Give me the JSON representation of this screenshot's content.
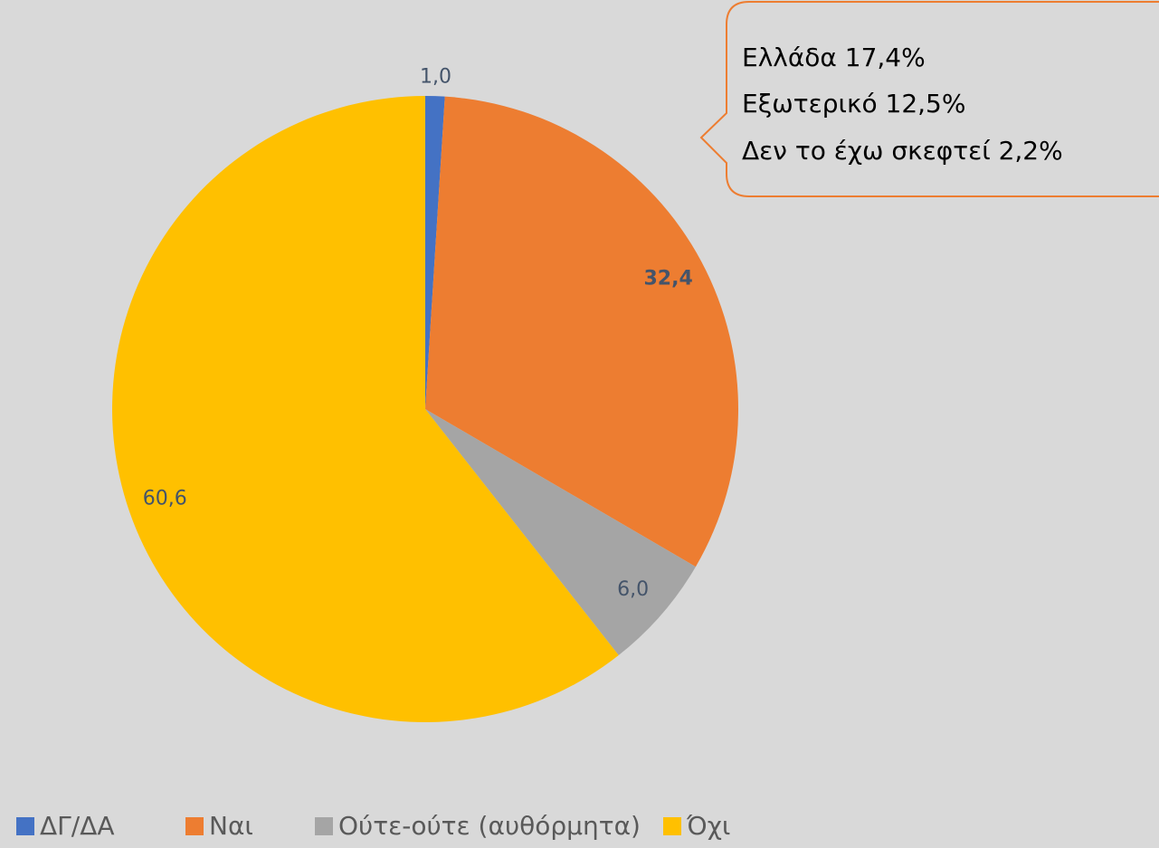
{
  "chart_data": {
    "type": "pie",
    "categories": [
      "ΔΓ/ΔΑ",
      "Ναι",
      "Ούτε-ούτε (αυθόρμητα)",
      "Όχι"
    ],
    "values": [
      1.0,
      32.4,
      6.0,
      60.6
    ],
    "value_labels": [
      "1,0",
      "32,4",
      "6,0",
      "60,6"
    ],
    "colors": [
      "#4472c4",
      "#ed7d31",
      "#a5a5a5",
      "#ffc000"
    ],
    "legend": "bottom",
    "annotations": [
      "Ελλάδα 17,4%",
      "Εξωτερικό 12,5%",
      "Δεν το έχω σκεφτεί 2,2%"
    ]
  }
}
